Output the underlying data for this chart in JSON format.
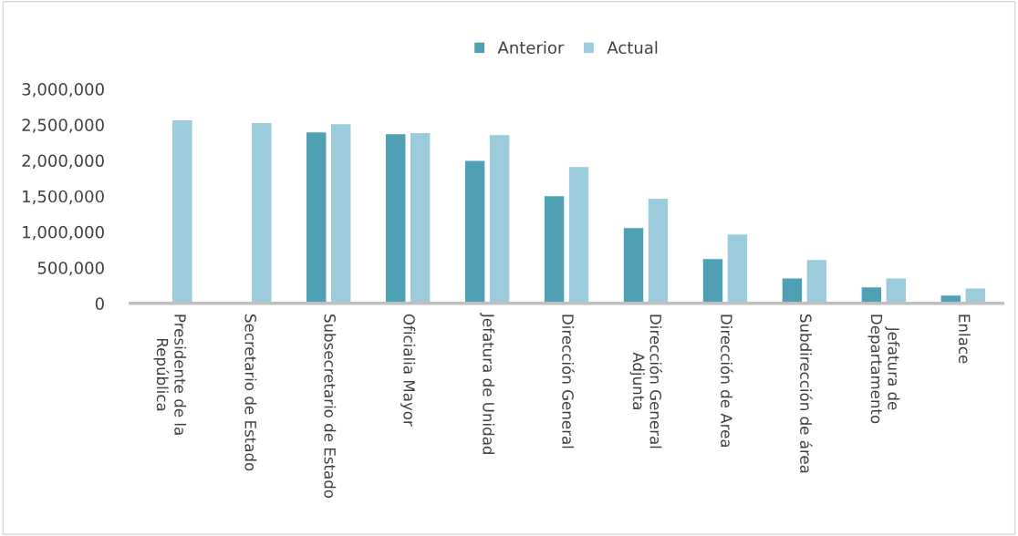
{
  "chart_data": {
    "type": "bar",
    "categories": [
      "Presidente de la\nRepública",
      "Secretario de Estado",
      "Subsecretario de Estado",
      "Oficialia Mayor",
      "Jefatura de Unidad",
      "Dirección General",
      "Dirección General\nAdjunta",
      "Dirección de Area",
      "Subdirección de área",
      "Jefatura de\nDepartamento",
      "Enlace"
    ],
    "series": [
      {
        "name": "Anterior",
        "color": "#4f9fb5",
        "values": [
          null,
          null,
          2400000,
          2375000,
          2000000,
          1505000,
          1060000,
          625000,
          355000,
          230000,
          115000
        ]
      },
      {
        "name": "Actual",
        "color": "#9ccbdc",
        "values": [
          2570000,
          2530000,
          2515000,
          2390000,
          2360000,
          1915000,
          1470000,
          970000,
          615000,
          355000,
          215000
        ]
      }
    ],
    "ylim": [
      0,
      3000000
    ],
    "yticks": [
      {
        "value": 0,
        "label": "0"
      },
      {
        "value": 500000,
        "label": "500,000"
      },
      {
        "value": 1000000,
        "label": "1,000,000"
      },
      {
        "value": 1500000,
        "label": "1,500,000"
      },
      {
        "value": 2000000,
        "label": "2,000,000"
      },
      {
        "value": 2500000,
        "label": "2,500,000"
      },
      {
        "value": 3000000,
        "label": "3,000,000"
      }
    ],
    "grid": false,
    "legend": "top"
  }
}
